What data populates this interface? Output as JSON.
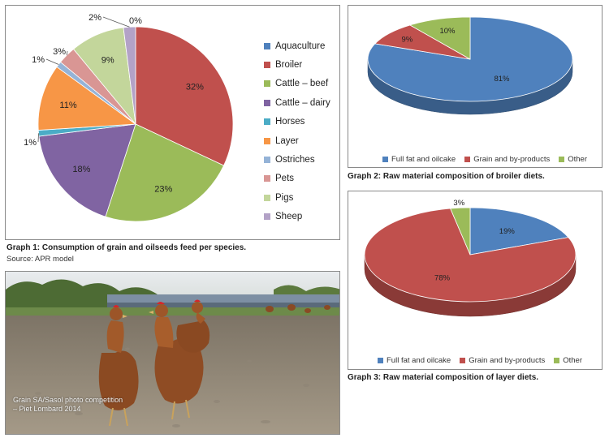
{
  "graph1": {
    "caption": "Graph 1: Consumption of grain and oilseeds feed per species.",
    "source": "Source: APR model",
    "chart_data": {
      "type": "pie",
      "title": "",
      "categories": [
        "Aquaculture",
        "Broiler",
        "Cattle – beef",
        "Cattle – dairy",
        "Horses",
        "Layer",
        "Ostriches",
        "Pets",
        "Pigs",
        "Sheep"
      ],
      "values": [
        0,
        32,
        23,
        18,
        1,
        11,
        1,
        3,
        9,
        2
      ],
      "value_labels": [
        "0%",
        "32%",
        "23%",
        "18%",
        "1%",
        "11%",
        "1%",
        "3%",
        "9%",
        "2%"
      ],
      "colors": [
        "#4f81bd",
        "#c0504d",
        "#9bbb59",
        "#8064a2",
        "#4bacc6",
        "#f79646",
        "#95b3d7",
        "#d99694",
        "#c3d69b",
        "#b3a2c7"
      ],
      "legend_position": "right"
    }
  },
  "graph2": {
    "caption": "Graph 2: Raw material composition of broiler diets.",
    "chart_data": {
      "type": "pie",
      "style": "3d",
      "title": "",
      "categories": [
        "Full fat and oilcake",
        "Grain and by-products",
        "Other"
      ],
      "values": [
        81,
        9,
        10
      ],
      "value_labels": [
        "81%",
        "9%",
        "10%"
      ],
      "colors": [
        "#4f81bd",
        "#c0504d",
        "#9bbb59"
      ],
      "legend_position": "bottom"
    }
  },
  "graph3": {
    "caption": "Graph 3: Raw material composition of layer diets.",
    "chart_data": {
      "type": "pie",
      "style": "3d",
      "title": "",
      "categories": [
        "Full fat and oilcake",
        "Grain and by-products",
        "Other"
      ],
      "values": [
        19,
        78,
        3
      ],
      "value_labels": [
        "19%",
        "78%",
        "3%"
      ],
      "colors": [
        "#4f81bd",
        "#c0504d",
        "#9bbb59"
      ],
      "legend_position": "bottom"
    }
  },
  "photo": {
    "credit_line1": "Grain SA/Sasol photo competition",
    "credit_line2": "– Piet Lombard 2014"
  }
}
